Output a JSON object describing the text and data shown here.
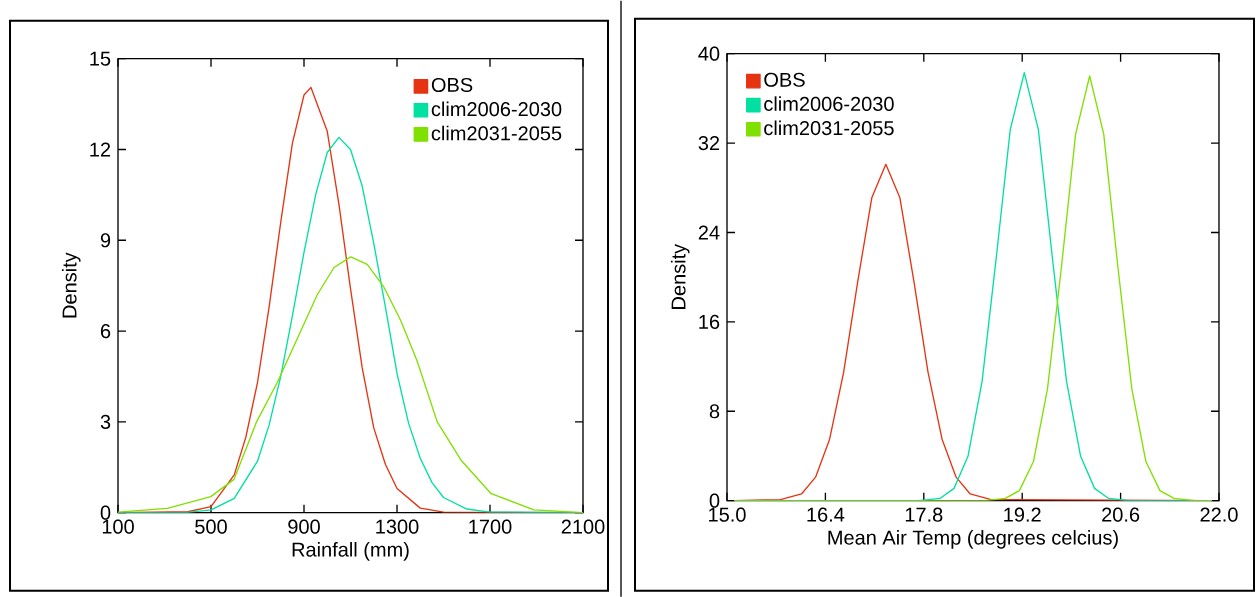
{
  "chart_data": [
    {
      "type": "line",
      "xlabel": "Rainfall (mm)",
      "ylabel": "Density",
      "legend": "top right",
      "xlim": [
        100,
        2100
      ],
      "xticks": [
        100,
        500,
        900,
        1300,
        1700,
        2100
      ],
      "ylim": [
        0,
        15
      ],
      "yticks": [
        0,
        3,
        6,
        9,
        12,
        15
      ],
      "series": [
        {
          "name": "OBS",
          "color": "#e63312",
          "x": [
            100,
            400,
            500,
            600,
            650,
            700,
            750,
            800,
            850,
            900,
            930,
            1000,
            1050,
            1100,
            1150,
            1200,
            1250,
            1300,
            1400,
            1500,
            2100
          ],
          "values": [
            0,
            0.03,
            0.2,
            1.25,
            2.5,
            4.3,
            6.8,
            9.6,
            12.2,
            13.8,
            14.05,
            12.6,
            10.2,
            7.4,
            4.8,
            2.8,
            1.6,
            0.8,
            0.15,
            0.02,
            0
          ]
        },
        {
          "name": "clim2006-2030",
          "color": "#00e0a0",
          "x": [
            100,
            400,
            500,
            600,
            700,
            750,
            800,
            850,
            900,
            950,
            1000,
            1050,
            1100,
            1150,
            1200,
            1250,
            1300,
            1350,
            1400,
            1450,
            1500,
            1600,
            1700,
            2100
          ],
          "values": [
            0,
            0.01,
            0.09,
            0.47,
            1.7,
            2.9,
            4.5,
            6.5,
            8.6,
            10.5,
            11.9,
            12.4,
            12.0,
            10.8,
            8.9,
            6.8,
            4.6,
            2.95,
            1.8,
            1.0,
            0.5,
            0.12,
            0.02,
            0
          ]
        },
        {
          "name": "clim2031-2055",
          "color": "#80e000",
          "x": [
            100,
            312,
            499,
            599,
            696,
            785,
            886,
            957,
            1029,
            1101,
            1172,
            1244,
            1316,
            1387,
            1473,
            1574,
            1703,
            1889,
            2100
          ],
          "values": [
            0.02,
            0.14,
            0.53,
            1.1,
            3.0,
            4.3,
            6.0,
            7.2,
            8.1,
            8.45,
            8.2,
            7.45,
            6.35,
            5.0,
            3.0,
            1.75,
            0.64,
            0.09,
            0
          ]
        }
      ]
    },
    {
      "type": "line",
      "xlabel": "Mean Air Temp (degrees celcius)",
      "ylabel": "Density",
      "legend": "top left",
      "xlim": [
        15,
        22
      ],
      "xticks": [
        {
          "value": 15,
          "label": "15.0"
        },
        {
          "value": 16.4,
          "label": "16.4"
        },
        {
          "value": 17.8,
          "label": "17.8"
        },
        {
          "value": 19.2,
          "label": "19.2"
        },
        {
          "value": 20.6,
          "label": "20.6"
        },
        {
          "value": 22,
          "label": "22.0"
        }
      ],
      "ylim": [
        0,
        40
      ],
      "yticks": [
        0,
        8,
        16,
        24,
        32,
        40
      ],
      "series": [
        {
          "name": "OBS",
          "color": "#e63312",
          "x": [
            15.1,
            15.76,
            16.06,
            16.26,
            16.46,
            16.66,
            16.86,
            17.06,
            17.26,
            17.46,
            17.66,
            17.86,
            18.06,
            18.26,
            18.46,
            18.76,
            21.9
          ],
          "values": [
            0,
            0.1,
            0.6,
            2.1,
            5.5,
            11.5,
            19.6,
            27.1,
            30.1,
            27.1,
            19.6,
            11.5,
            5.5,
            2.1,
            0.6,
            0.1,
            0
          ]
        },
        {
          "name": "clim2006-2030",
          "color": "#00e0a0",
          "x": [
            15.1,
            17.73,
            18.03,
            18.23,
            18.43,
            18.63,
            18.83,
            19.03,
            19.23,
            19.43,
            19.63,
            19.83,
            20.03,
            20.23,
            20.43,
            20.73,
            21.9
          ],
          "values": [
            0,
            0,
            0.2,
            1.1,
            4.0,
            10.7,
            21.7,
            33.2,
            38.3,
            33.2,
            21.7,
            10.7,
            4.0,
            1.1,
            0.2,
            0,
            0
          ]
        },
        {
          "name": "clim2031-2055",
          "color": "#80e000",
          "x": [
            15.1,
            18.66,
            18.96,
            19.16,
            19.36,
            19.56,
            19.76,
            19.96,
            20.16,
            20.36,
            20.56,
            20.76,
            20.96,
            21.16,
            21.36,
            21.66,
            21.9
          ],
          "values": [
            0,
            0,
            0.2,
            0.9,
            3.5,
            10.0,
            21.0,
            32.8,
            38.0,
            32.8,
            21.0,
            10.0,
            3.5,
            0.9,
            0.2,
            0,
            0
          ]
        }
      ]
    }
  ]
}
